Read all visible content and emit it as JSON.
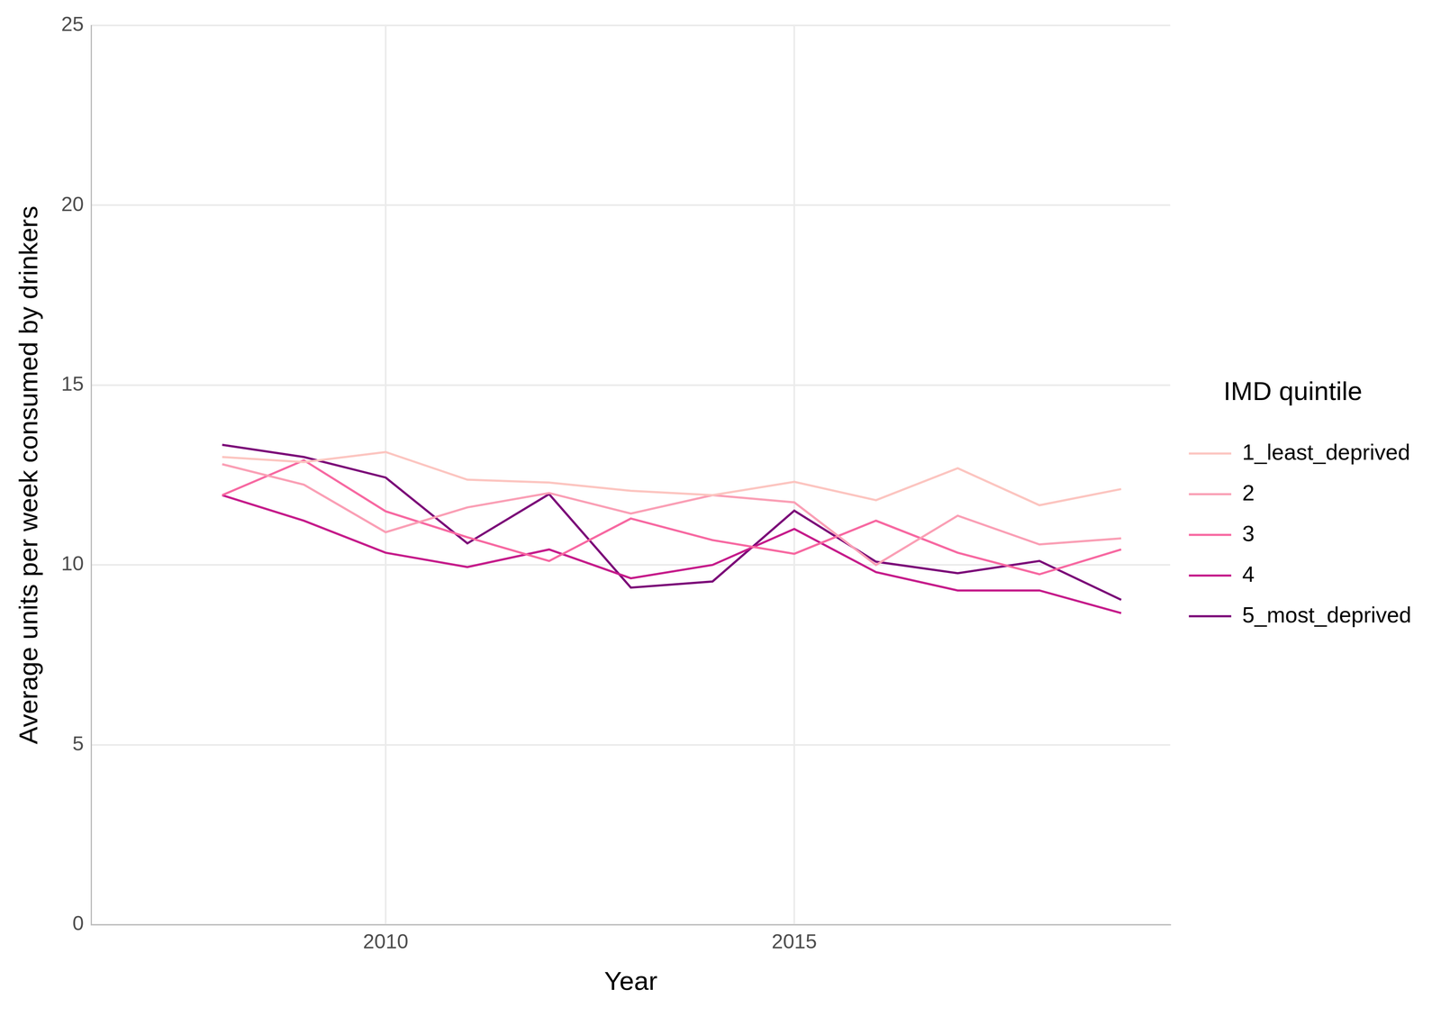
{
  "chart_data": {
    "type": "line",
    "x_label": "Year",
    "y_label": "Average units per week consumed by drinkers",
    "legend_title": "IMD quintile",
    "legend": "right",
    "grid": true,
    "x": [
      2008,
      2009,
      2010,
      2011,
      2012,
      2013,
      2014,
      2015,
      2016,
      2017,
      2018,
      2019
    ],
    "xlim": [
      2006.4,
      2019.6
    ],
    "xticks": [
      2010,
      2015
    ],
    "ylim": [
      0,
      25
    ],
    "yticks": [
      0,
      5,
      10,
      15,
      20,
      25
    ],
    "series": [
      {
        "name": "1_least_deprived",
        "color": "#FCC5C0",
        "values": [
          13.0,
          12.86,
          13.14,
          12.37,
          12.29,
          12.06,
          11.94,
          12.31,
          11.8,
          12.69,
          11.66,
          12.11
        ]
      },
      {
        "name": "2",
        "color": "#FA9FB5",
        "values": [
          12.8,
          12.23,
          10.91,
          11.6,
          12.0,
          11.43,
          11.94,
          11.74,
          10.0,
          11.37,
          10.57,
          10.74
        ]
      },
      {
        "name": "3",
        "color": "#F768A1",
        "values": [
          11.94,
          12.91,
          11.49,
          10.77,
          10.11,
          11.29,
          10.69,
          10.31,
          11.23,
          10.34,
          9.74,
          10.43
        ]
      },
      {
        "name": "4",
        "color": "#C51B8A",
        "values": [
          11.94,
          11.23,
          10.34,
          9.94,
          10.43,
          9.63,
          10.0,
          11.0,
          9.8,
          9.29,
          9.29,
          8.66
        ]
      },
      {
        "name": "5_most_deprived",
        "color": "#7A0177",
        "values": [
          13.34,
          13.0,
          12.43,
          10.6,
          11.97,
          9.37,
          9.54,
          11.51,
          10.09,
          9.77,
          10.11,
          9.03
        ]
      }
    ]
  }
}
